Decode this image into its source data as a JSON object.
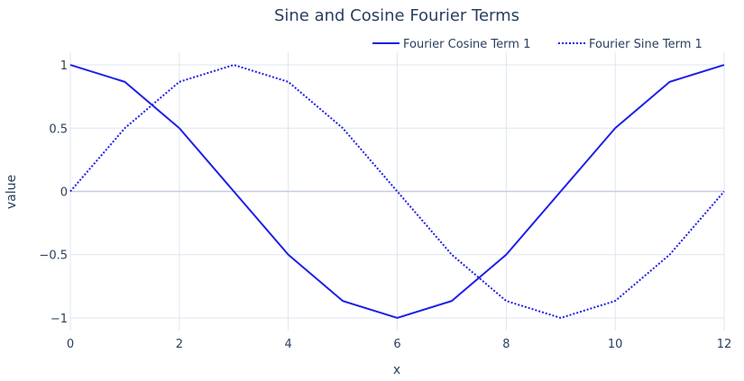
{
  "chart_data": {
    "type": "line",
    "title": "Sine and Cosine Fourier Terms",
    "xlabel": "x",
    "ylabel": "value",
    "xlim": [
      0,
      12
    ],
    "ylim": [
      -1.1,
      1.1
    ],
    "x_ticks": [
      0,
      2,
      4,
      6,
      8,
      10,
      12
    ],
    "x_tick_labels": [
      "0",
      "2",
      "4",
      "6",
      "8",
      "10",
      "12"
    ],
    "y_ticks": [
      -1,
      -0.5,
      0,
      0.5,
      1
    ],
    "y_tick_labels": [
      "−1",
      "−0.5",
      "0",
      "0.5",
      "1"
    ],
    "grid": true,
    "legend_position": "top-right",
    "x": [
      0,
      1,
      2,
      3,
      4,
      5,
      6,
      7,
      8,
      9,
      10,
      11,
      12
    ],
    "series": [
      {
        "name": "Fourier Cosine Term 1",
        "values": [
          1,
          0.866,
          0.5,
          0,
          -0.5,
          -0.866,
          -1,
          -0.866,
          -0.5,
          0,
          0.5,
          0.866,
          1
        ],
        "color": "#1f1fe8",
        "dash": "solid"
      },
      {
        "name": "Fourier Sine Term 1",
        "values": [
          0,
          0.5,
          0.866,
          1,
          0.866,
          0.5,
          0,
          -0.5,
          -0.866,
          -1,
          -0.866,
          -0.5,
          0
        ],
        "color": "#1f1fe8",
        "dash": "dot"
      }
    ]
  },
  "colors": {
    "grid": "#dfe6f1",
    "zero_line": "#c6cde0",
    "text": "#2a3f5f"
  }
}
